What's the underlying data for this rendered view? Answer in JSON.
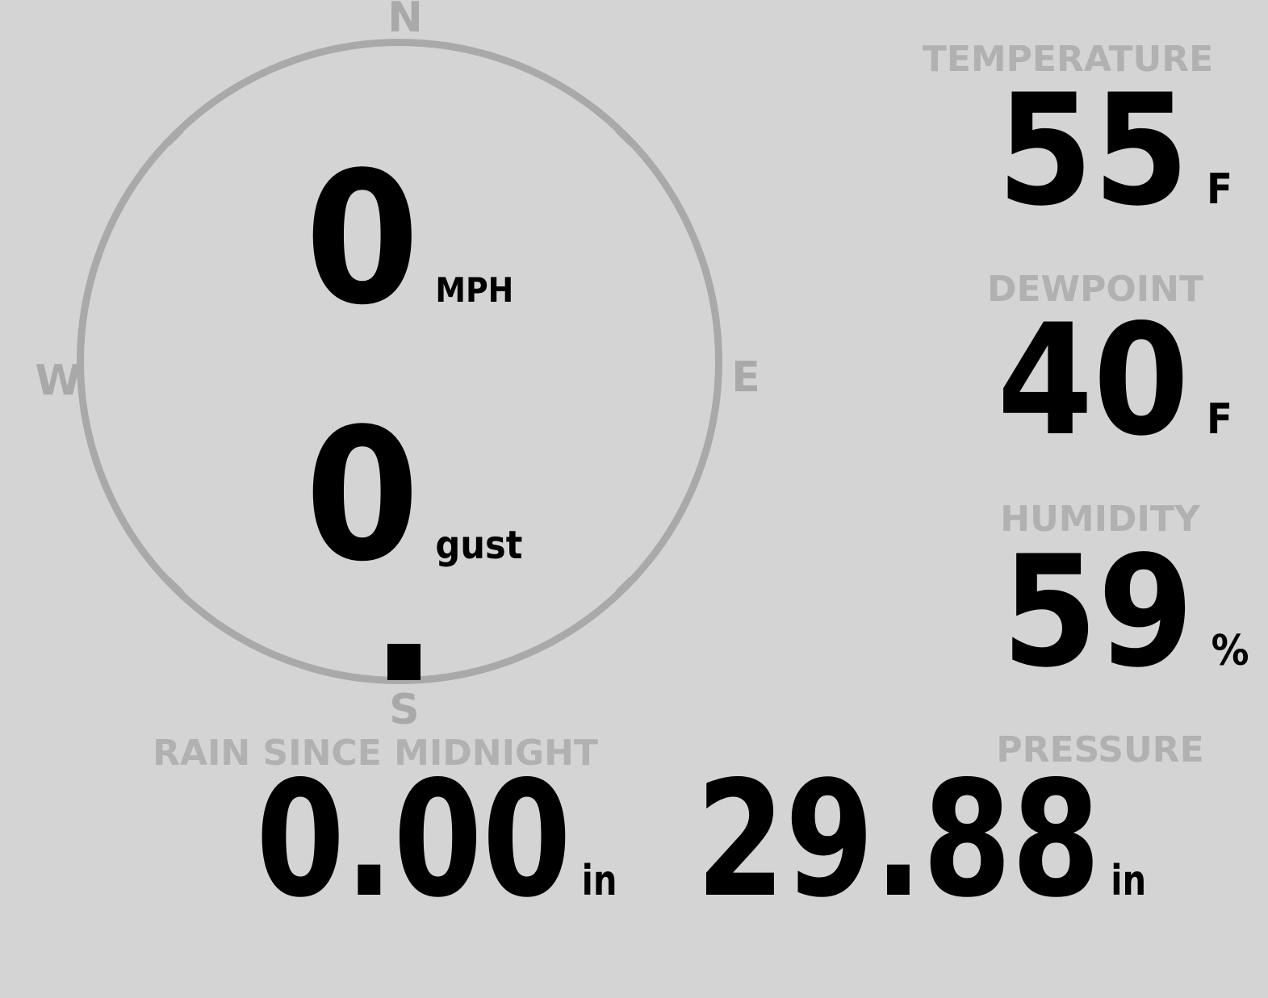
{
  "colors": {
    "background": "#d4d4d4",
    "compass": "#a9a9a9",
    "header_text": "#b1b1b1",
    "value_text": "#000000"
  },
  "compass": {
    "cardinals": {
      "north": "N",
      "east": "E",
      "south": "S",
      "west": "W"
    },
    "wind": {
      "speed": "0",
      "speed_unit": "MPH",
      "gust": "0",
      "gust_unit": "gust",
      "direction": "S"
    }
  },
  "stats": {
    "temperature": {
      "label": "TEMPERATURE",
      "value": "55",
      "unit": "F"
    },
    "dewpoint": {
      "label": "DEWPOINT",
      "value": "40",
      "unit": "F"
    },
    "humidity": {
      "label": "HUMIDITY",
      "value": "59",
      "unit": "%"
    },
    "rain": {
      "label": "RAIN SINCE MIDNIGHT",
      "value": "0.00",
      "unit": "in"
    },
    "pressure": {
      "label": "PRESSURE",
      "value": "29.88",
      "unit": "in"
    }
  }
}
